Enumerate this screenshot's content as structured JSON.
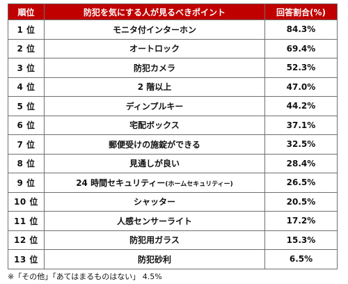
{
  "table": {
    "headers": {
      "rank": "順位",
      "point": "防犯を気にする人が見るべきポイント",
      "rate": "回答割合(%)"
    },
    "rows": [
      {
        "rank": "1 位",
        "point": "モニタ付インターホン",
        "point_sub": "",
        "rate": "84.3%"
      },
      {
        "rank": "2 位",
        "point": "オートロック",
        "point_sub": "",
        "rate": "69.4%"
      },
      {
        "rank": "3 位",
        "point": "防犯カメラ",
        "point_sub": "",
        "rate": "52.3%"
      },
      {
        "rank": "4 位",
        "point": "2 階以上",
        "point_sub": "",
        "rate": "47.0%"
      },
      {
        "rank": "5 位",
        "point": "ディンプルキー",
        "point_sub": "",
        "rate": "44.2%"
      },
      {
        "rank": "6 位",
        "point": "宅配ボックス",
        "point_sub": "",
        "rate": "37.1%"
      },
      {
        "rank": "7 位",
        "point": "郵便受けの施錠ができる",
        "point_sub": "",
        "rate": "32.5%"
      },
      {
        "rank": "8 位",
        "point": "見通しが良い",
        "point_sub": "",
        "rate": "28.4%"
      },
      {
        "rank": "9 位",
        "point": "24 時間セキュリティー",
        "point_sub": "(ホームセキュリティー)",
        "rate": "26.5%"
      },
      {
        "rank": "10 位",
        "point": "シャッター",
        "point_sub": "",
        "rate": "20.5%"
      },
      {
        "rank": "11 位",
        "point": "人感センサーライト",
        "point_sub": "",
        "rate": "17.2%"
      },
      {
        "rank": "12 位",
        "point": "防犯用ガラス",
        "point_sub": "",
        "rate": "15.3%"
      },
      {
        "rank": "13 位",
        "point": "防犯砂利",
        "point_sub": "",
        "rate": "6.5%"
      }
    ]
  },
  "footnote": "※「その他」「あてはまるものはない」 4.5%"
}
